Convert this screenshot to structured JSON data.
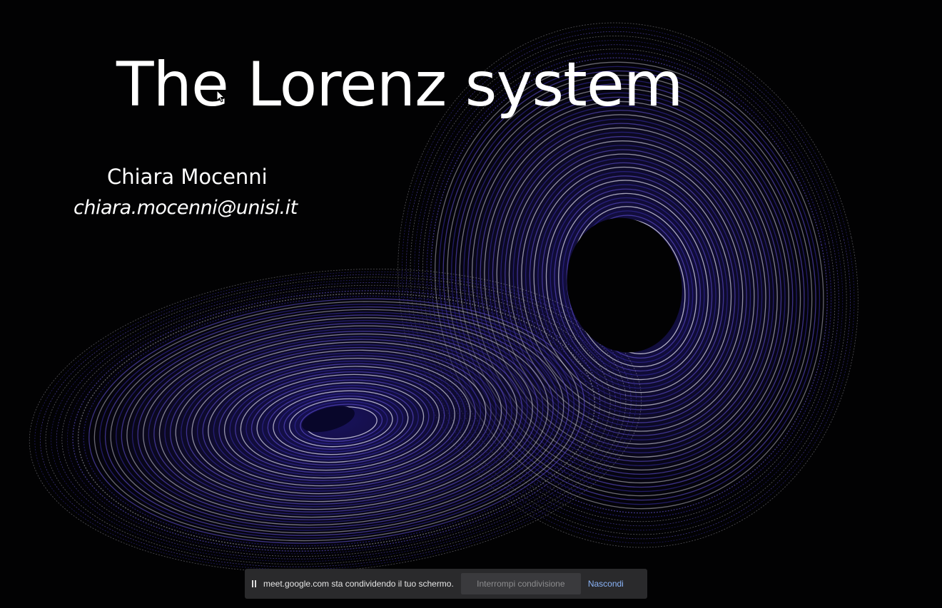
{
  "slide": {
    "title": "The Lorenz system",
    "author": "Chiara Mocenni",
    "email": "chiara.mocenni@unisi.it",
    "background_color": "#020203",
    "attractor_color": "#5b4bd6",
    "text_color": "#ffffff"
  },
  "share_bar": {
    "pause_icon": "pause-icon",
    "message": "meet.google.com sta condividendo il tuo schermo.",
    "stop_label": "Interrompi condivisione",
    "hide_label": "Nascondi",
    "link_color": "#8ab4f8"
  },
  "cursor": {
    "icon": "arrow-cursor-icon"
  }
}
